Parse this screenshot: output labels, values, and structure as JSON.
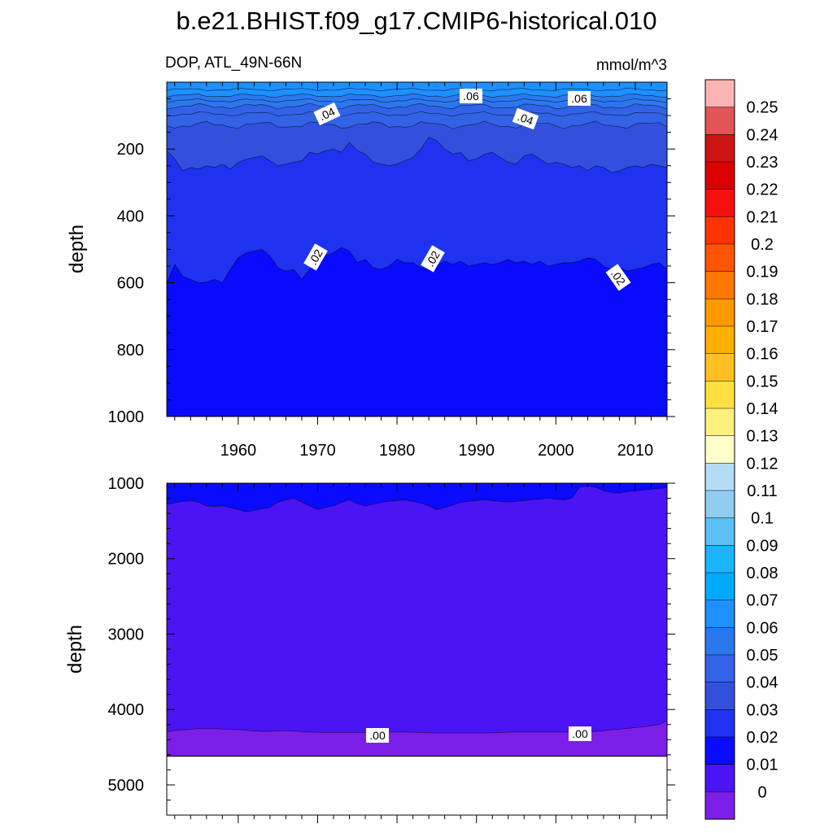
{
  "chart_data": {
    "type": "contour",
    "title": "b.e21.BHIST.f09_g17.CMIP6-historical.010",
    "variable_label": "DOP, ATL_49N-66N",
    "units_label": "mmol/m^3",
    "colorbar": {
      "levels": [
        "0.25",
        "0.24",
        "0.23",
        "0.22",
        "0.21",
        "0.2",
        "0.19",
        "0.18",
        "0.17",
        "0.16",
        "0.15",
        "0.14",
        "0.13",
        "0.12",
        "0.11",
        "0.1",
        "0.09",
        "0.08",
        "0.07",
        "0.06",
        "0.05",
        "0.04",
        "0.03",
        "0.02",
        "0.01",
        "0"
      ],
      "colors": [
        "#fdb4b4",
        "#e05555",
        "#cc1414",
        "#dd0000",
        "#f51010",
        "#ff3300",
        "#ff5500",
        "#ff7700",
        "#ff9900",
        "#ffb000",
        "#ffc020",
        "#ffe040",
        "#fff080",
        "#ffffc8",
        "#b4dcf5",
        "#90cdf0",
        "#5ac0f5",
        "#1ab4ff",
        "#00aaff",
        "#1e90ff",
        "#2b78ee",
        "#3262e6",
        "#3250dd",
        "#1e32f0",
        "#0a0aff",
        "#4a14f5",
        "#7b1fe8"
      ]
    },
    "panels": [
      {
        "name": "upper",
        "ylabel": "depth",
        "y_range": [
          0,
          1000
        ],
        "y_ticks": [
          "200",
          "400",
          "600",
          "800",
          "1000"
        ],
        "x_ticks": [
          "1960",
          "1970",
          "1980",
          "1990",
          "2000",
          "2010"
        ],
        "x_range": [
          1951,
          2014
        ],
        "contour_labels": [
          ".06",
          ".06",
          ".04",
          ".04",
          ".02",
          ".02",
          ".02"
        ],
        "years": [
          1951,
          1952,
          1953,
          1954,
          1955,
          1956,
          1957,
          1958,
          1959,
          1960,
          1961,
          1962,
          1963,
          1964,
          1965,
          1966,
          1967,
          1968,
          1969,
          1970,
          1971,
          1972,
          1973,
          1974,
          1975,
          1976,
          1977,
          1978,
          1979,
          1980,
          1981,
          1982,
          1983,
          1984,
          1985,
          1986,
          1987,
          1988,
          1989,
          1990,
          1991,
          1992,
          1993,
          1994,
          1995,
          1996,
          1997,
          1998,
          1999,
          2000,
          2001,
          2002,
          2003,
          2004,
          2005,
          2006,
          2007,
          2008,
          2009,
          2010,
          2011,
          2012,
          2013,
          2014
        ],
        "isoline_02_depth": [
          600,
          545,
          580,
          590,
          600,
          598,
          590,
          600,
          560,
          525,
          510,
          505,
          500,
          520,
          555,
          565,
          560,
          590,
          560,
          530,
          520,
          510,
          495,
          505,
          540,
          530,
          555,
          560,
          550,
          530,
          540,
          540,
          555,
          560,
          550,
          535,
          545,
          535,
          550,
          545,
          540,
          545,
          540,
          530,
          540,
          535,
          545,
          535,
          550,
          545,
          540,
          540,
          535,
          525,
          530,
          550,
          560,
          555,
          565,
          560,
          555,
          545,
          540,
          560
        ],
        "isoline_03_depth": [
          205,
          230,
          265,
          255,
          260,
          250,
          255,
          245,
          260,
          240,
          230,
          225,
          220,
          235,
          250,
          245,
          240,
          235,
          210,
          215,
          205,
          200,
          210,
          180,
          205,
          215,
          240,
          245,
          250,
          245,
          235,
          225,
          200,
          165,
          175,
          200,
          215,
          210,
          235,
          230,
          215,
          210,
          225,
          240,
          245,
          220,
          215,
          230,
          245,
          240,
          245,
          255,
          250,
          265,
          250,
          255,
          270,
          265,
          255,
          250,
          255,
          245,
          250,
          255
        ]
      },
      {
        "name": "lower",
        "ylabel": "depth",
        "y_range": [
          1000,
          5400
        ],
        "y_ticks": [
          "1000",
          "2000",
          "3000",
          "4000",
          "5000"
        ],
        "contour_labels": [
          ".00",
          ".00"
        ],
        "bottom_depth": 4620,
        "isoline_01_depth": [
          1280,
          1260,
          1240,
          1230,
          1250,
          1300,
          1310,
          1300,
          1320,
          1350,
          1380,
          1360,
          1340,
          1320,
          1250,
          1220,
          1200,
          1250,
          1300,
          1350,
          1320,
          1300,
          1250,
          1220,
          1270,
          1300,
          1280,
          1250,
          1240,
          1230,
          1220,
          1240,
          1260,
          1300,
          1350,
          1320,
          1290,
          1250,
          1240,
          1230,
          1220,
          1230,
          1240,
          1250,
          1240,
          1230,
          1220,
          1210,
          1200,
          1210,
          1220,
          1200,
          1050,
          1040,
          1050,
          1100,
          1120,
          1130,
          1110,
          1100,
          1090,
          1080,
          1070,
          1060
        ],
        "isoline_00_depth": [
          4300,
          4280,
          4270,
          4260,
          4255,
          4255,
          4255,
          4260,
          4260,
          4265,
          4275,
          4285,
          4290,
          4290,
          4285,
          4280,
          4285,
          4300,
          4300,
          4300,
          4305,
          4305,
          4305,
          4305,
          4305,
          4305,
          4300,
          4300,
          4300,
          4300,
          4300,
          4300,
          4305,
          4310,
          4310,
          4310,
          4310,
          4310,
          4310,
          4310,
          4310,
          4310,
          4305,
          4300,
          4300,
          4300,
          4300,
          4300,
          4300,
          4300,
          4300,
          4300,
          4300,
          4295,
          4290,
          4280,
          4270,
          4260,
          4250,
          4240,
          4230,
          4215,
          4195,
          4160
        ]
      }
    ]
  }
}
